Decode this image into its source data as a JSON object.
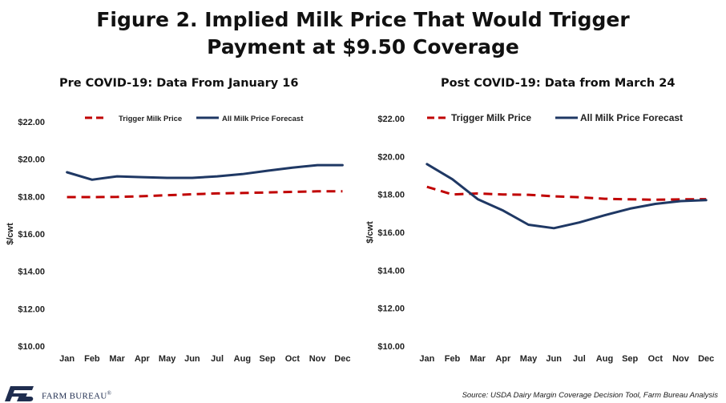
{
  "title": {
    "line1": "Figure 2. Implied Milk Price That Would Trigger",
    "line2": "Payment at $9.50 Coverage"
  },
  "colors": {
    "trigger": "#c00000",
    "forecast": "#1f3864",
    "brand": "#1f2d4f"
  },
  "chart_data": [
    {
      "type": "line",
      "title": "Pre COVID-19: Data From January 16",
      "ylabel": "$/cwt",
      "ylim": [
        10,
        22
      ],
      "y_ticks": [
        "$10.00",
        "$12.00",
        "$14.00",
        "$16.00",
        "$18.00",
        "$20.00",
        "$22.00"
      ],
      "categories": [
        "Jan",
        "Feb",
        "Mar",
        "Apr",
        "May",
        "Jun",
        "Jul",
        "Aug",
        "Sep",
        "Oct",
        "Nov",
        "Dec"
      ],
      "legend": "top",
      "grid": false,
      "series": [
        {
          "name": "Trigger Milk Price",
          "style": "dashed",
          "color": "#c00000",
          "values": [
            17.97,
            17.97,
            17.98,
            18.02,
            18.07,
            18.12,
            18.17,
            18.19,
            18.22,
            18.25,
            18.28,
            18.28
          ]
        },
        {
          "name": "All Milk Price Forecast",
          "style": "solid",
          "color": "#1f3864",
          "values": [
            19.3,
            18.9,
            19.08,
            19.04,
            19.0,
            19.0,
            19.08,
            19.2,
            19.38,
            19.55,
            19.68,
            19.68
          ]
        }
      ]
    },
    {
      "type": "line",
      "title": "Post COVID-19: Data from March 24",
      "ylabel": "$/cwt",
      "ylim": [
        10,
        22
      ],
      "y_ticks": [
        "$10.00",
        "$12.00",
        "$14.00",
        "$16.00",
        "$18.00",
        "$20.00",
        "$22.00"
      ],
      "categories": [
        "Jan",
        "Feb",
        "Mar",
        "Apr",
        "May",
        "Jun",
        "Jul",
        "Aug",
        "Sep",
        "Oct",
        "Nov",
        "Dec"
      ],
      "legend": "top",
      "grid": false,
      "series": [
        {
          "name": "Trigger Milk Price",
          "style": "dashed",
          "color": "#c00000",
          "values": [
            18.4,
            18.0,
            18.05,
            18.0,
            17.98,
            17.9,
            17.85,
            17.77,
            17.74,
            17.72,
            17.74,
            17.75
          ]
        },
        {
          "name": "All Milk Price Forecast",
          "style": "solid",
          "color": "#1f3864",
          "values": [
            19.6,
            18.8,
            17.75,
            17.15,
            16.4,
            16.22,
            16.52,
            16.9,
            17.25,
            17.5,
            17.65,
            17.7
          ]
        }
      ]
    }
  ],
  "footer": {
    "brand": "FARM BUREAU",
    "registered": "®",
    "source": "Source: USDA Dairy Margin Coverage Decision Tool, Farm Bureau Analysis"
  }
}
